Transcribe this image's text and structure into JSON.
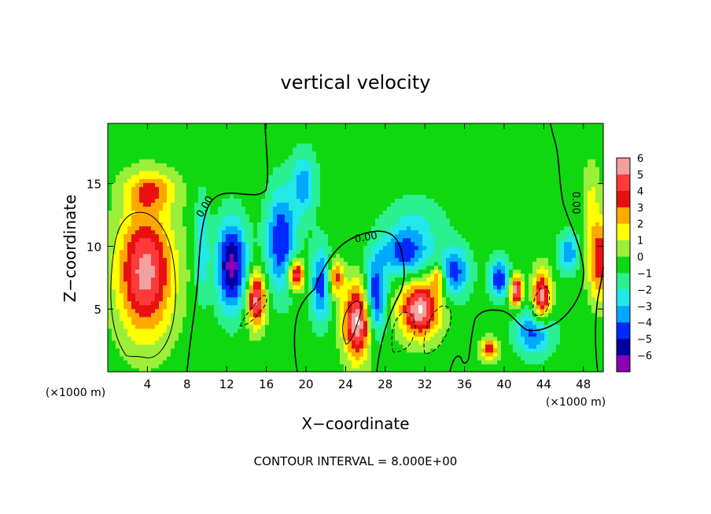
{
  "chart_data": {
    "type": "heatmap",
    "title": "vertical velocity",
    "xlabel": "X−coordinate",
    "ylabel": "Z−coordinate",
    "x_unit_left": "(×1000 m)",
    "x_unit_right": "(×1000 m)",
    "xlim": [
      0,
      50
    ],
    "ylim": [
      0,
      19.8
    ],
    "x_ticks": [
      4,
      8,
      12,
      16,
      20,
      24,
      28,
      32,
      36,
      40,
      44,
      48
    ],
    "y_ticks": [
      5,
      10,
      15
    ],
    "contour_label": "0.00",
    "footer": "CONTOUR INTERVAL = 8.000E+00",
    "colorbar": {
      "labels": [
        "6",
        "5",
        "4",
        "3",
        "2",
        "1",
        "0",
        "−1",
        "−2",
        "−3",
        "−4",
        "−5",
        "−6"
      ],
      "values": [
        6,
        5,
        4,
        3,
        2,
        1,
        0,
        -1,
        -2,
        -3,
        -4,
        -5,
        -6
      ],
      "colors": [
        "#f2a0a0",
        "#ff3a3a",
        "#e81010",
        "#ffa800",
        "#ffff00",
        "#9bef3a",
        "#10d810",
        "#2af090",
        "#22e8e8",
        "#00a8ff",
        "#0028ff",
        "#0000a0",
        "#8a00b4"
      ]
    },
    "features": [
      {
        "x": 3.8,
        "z": 8.0,
        "w": 6,
        "sx": 2.8,
        "sz": 5.0
      },
      {
        "x": 4.3,
        "z": 14.5,
        "w": 3,
        "sx": 2.5,
        "sz": 1.5
      },
      {
        "x": 49.6,
        "z": 9.0,
        "w": 4.5,
        "sx": 1.1,
        "sz": 3.2
      },
      {
        "x": 48.8,
        "z": 14.0,
        "w": 1.5,
        "sx": 0.9,
        "sz": 3.0
      },
      {
        "x": 15.0,
        "z": 5.8,
        "w": 6,
        "sx": 0.9,
        "sz": 2.2
      },
      {
        "x": 19.0,
        "z": 7.8,
        "w": 6,
        "sx": 0.8,
        "sz": 1.2
      },
      {
        "x": 25.2,
        "z": 4.0,
        "w": 6.5,
        "sx": 1.4,
        "sz": 3.0
      },
      {
        "x": 23.0,
        "z": 7.5,
        "w": 4,
        "sx": 0.8,
        "sz": 1.4
      },
      {
        "x": 31.5,
        "z": 5.0,
        "w": 6.5,
        "sx": 2.0,
        "sz": 2.2
      },
      {
        "x": 33.3,
        "z": 7.5,
        "w": 3.5,
        "sx": 0.7,
        "sz": 1.0
      },
      {
        "x": 38.5,
        "z": 1.8,
        "w": 4,
        "sx": 0.9,
        "sz": 0.9
      },
      {
        "x": 41.2,
        "z": 6.5,
        "w": 6.5,
        "sx": 0.6,
        "sz": 1.2
      },
      {
        "x": 43.8,
        "z": 6.0,
        "w": 6,
        "sx": 0.9,
        "sz": 2.0
      },
      {
        "x": 12.5,
        "z": 8.5,
        "w": -6,
        "sx": 1.5,
        "sz": 3.5
      },
      {
        "x": 17.5,
        "z": 10.5,
        "w": -4.5,
        "sx": 1.5,
        "sz": 4.0
      },
      {
        "x": 19.8,
        "z": 15.0,
        "w": -3,
        "sx": 1.2,
        "sz": 2.5
      },
      {
        "x": 21.5,
        "z": 7.0,
        "w": -4,
        "sx": 1.0,
        "sz": 3.0
      },
      {
        "x": 27.0,
        "z": 6.0,
        "w": -5,
        "sx": 1.0,
        "sz": 3.0
      },
      {
        "x": 30.0,
        "z": 9.5,
        "w": -4,
        "sx": 2.5,
        "sz": 1.8
      },
      {
        "x": 35.0,
        "z": 8.0,
        "w": -4,
        "sx": 1.5,
        "sz": 2.0
      },
      {
        "x": 39.5,
        "z": 7.5,
        "w": -4.5,
        "sx": 1.0,
        "sz": 1.5
      },
      {
        "x": 43.0,
        "z": 3.2,
        "w": -4,
        "sx": 1.8,
        "sz": 1.8
      },
      {
        "x": 46.5,
        "z": 9.5,
        "w": -3.5,
        "sx": 1.0,
        "sz": 1.5
      },
      {
        "x": 9.5,
        "z": 10.0,
        "w": -2.5,
        "sx": 0.7,
        "sz": 4.0
      },
      {
        "x": 31.0,
        "z": 12.0,
        "w": -1.5,
        "sx": 3.0,
        "sz": 2.0
      }
    ]
  }
}
